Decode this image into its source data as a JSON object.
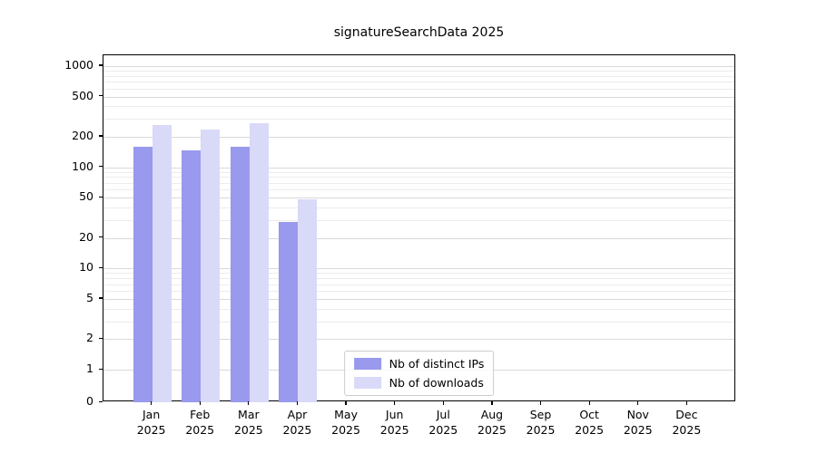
{
  "chart_data": {
    "type": "bar",
    "title": "signatureSearchData 2025",
    "categories": [
      "Jan 2025",
      "Feb 2025",
      "Mar 2025",
      "Apr 2025",
      "May 2025",
      "Jun 2025",
      "Jul 2025",
      "Aug 2025",
      "Sep 2025",
      "Oct 2025",
      "Nov 2025",
      "Dec 2025"
    ],
    "series": [
      {
        "name": "Nb of distinct IPs",
        "color": "#9999ee",
        "values": [
          160,
          148,
          160,
          29,
          0,
          0,
          0,
          0,
          0,
          0,
          0,
          0
        ]
      },
      {
        "name": "Nb of downloads",
        "color": "#d9d9f8",
        "values": [
          260,
          235,
          270,
          48,
          0,
          0,
          0,
          0,
          0,
          0,
          0,
          0
        ]
      }
    ],
    "yscale": "symlog",
    "yticks": [
      0,
      1,
      2,
      5,
      10,
      20,
      50,
      100,
      200,
      500,
      1000
    ],
    "ylim": [
      0,
      1300
    ],
    "xlabel": "",
    "ylabel": "",
    "grid": true,
    "legend_position": "lower center"
  },
  "colors": {
    "grid_major": "#d9d9d9",
    "grid_minor": "#ececec",
    "spine": "#000000",
    "legend_border": "#cccccc",
    "background": "#ffffff"
  }
}
